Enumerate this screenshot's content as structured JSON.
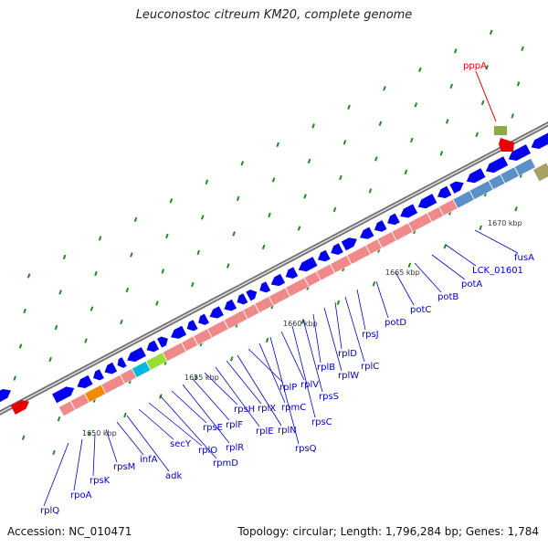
{
  "title": "Leuconostoc citreum KM20, complete genome",
  "footer": {
    "accession": "Accession: NC_010471",
    "topology": "Topology: circular; Length: 1,796,284 bp; Genes: 1,784"
  },
  "colors": {
    "gene_blue": "#0000ee",
    "label_blue": "#0000cc",
    "cds_pink": "#f08a8a",
    "highlight_red": "#e60000",
    "backbone": "#707070",
    "tick_green": "#228b22"
  },
  "kbp_marks": [
    "1650 kbp",
    "1655 kbp",
    "1660 kbp",
    "1665 kbp",
    "1670 kbp"
  ],
  "gene_labels": [
    "rplQ",
    "rpoA",
    "rpsK",
    "rpsM",
    "infA",
    "adk",
    "secY",
    "rplO",
    "rpmD",
    "rpsE",
    "rplR",
    "rplF",
    "rpsH",
    "rplE",
    "rplX",
    "rplN",
    "rplP",
    "rpmC",
    "rpsQ",
    "rplV",
    "rpsC",
    "rpsS",
    "rplB",
    "rplW",
    "rplD",
    "rplC",
    "rpsJ",
    "potD",
    "potC",
    "potB",
    "potA",
    "LCK_01601",
    "fusA"
  ],
  "highlight_gene": "pppA"
}
